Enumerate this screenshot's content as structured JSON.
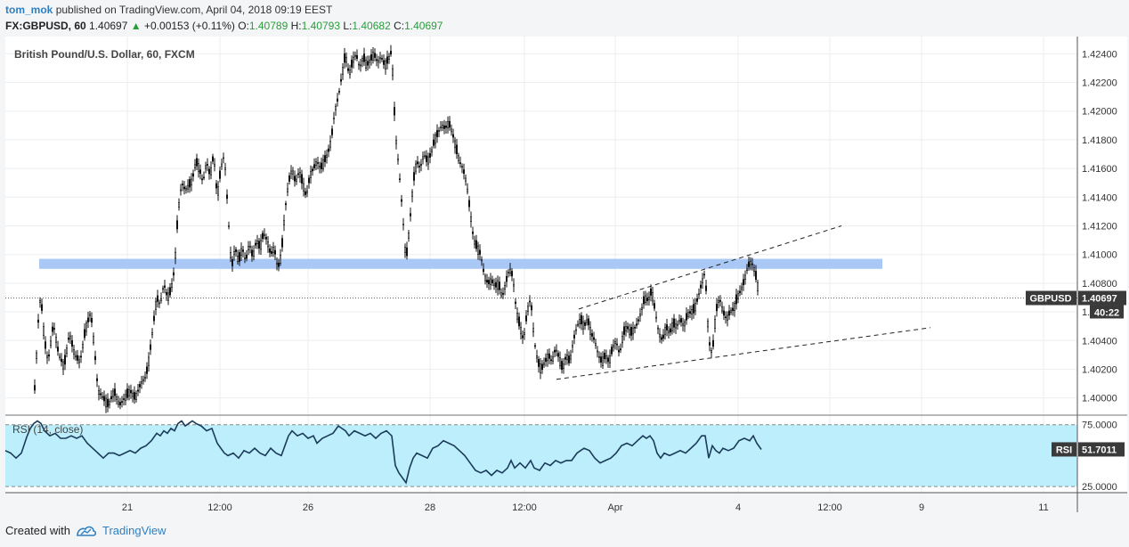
{
  "header": {
    "author": "tom_mok",
    "published_text": "published on TradingView.com, April 04, 2018 09:19 EEST",
    "symbol": "FX:GBPUSD, 60",
    "last": "1.40697",
    "change_arrow": "▲",
    "change": "+0.00153 (+0.11%)",
    "o_label": "O:",
    "o_value": "1.40789",
    "h_label": "H:",
    "h_value": "1.40793",
    "l_label": "L:",
    "l_value": "1.40682",
    "c_label": "C:",
    "c_value": "1.40697"
  },
  "footer": {
    "created_with": "Created with",
    "brand": "TradingView"
  },
  "colors": {
    "candle": "#111111",
    "resistance_zone": "#a9c8f5",
    "rsi_band": "#bdeefb",
    "rsi_line": "#1b3b5a",
    "badge_bg": "#3a3a3a",
    "change_green": "#2a9d3b"
  },
  "chart_data": {
    "type": "candlestick",
    "title": "British Pound/U.S. Dollar, 60, FXCM",
    "ylim": [
      1.3988,
      1.4252
    ],
    "y_ticks": [
      "1.42400",
      "1.42200",
      "1.42000",
      "1.41800",
      "1.41600",
      "1.41400",
      "1.41200",
      "1.41000",
      "1.40800",
      "1.40600",
      "1.40400",
      "1.40200",
      "1.40000"
    ],
    "x_ticks": [
      "21",
      "12:00",
      "26",
      "28",
      "12:00",
      "Apr",
      "4",
      "12:00",
      "9",
      "11"
    ],
    "current_price": 1.40697,
    "price_badge": {
      "label": "GBPUSD",
      "value": "1.40697",
      "countdown": "40:22"
    },
    "resistance_zone": {
      "low": 1.409,
      "high": 1.4097
    },
    "channel": {
      "upper": {
        "x": [
          650,
          945
        ],
        "y": [
          1.4062,
          1.412
        ]
      },
      "lower": {
        "x": [
          625,
          1045
        ],
        "y": [
          1.4013,
          1.4049
        ]
      }
    },
    "price_path": [
      [
        38,
        1.3995
      ],
      [
        44,
        1.4065
      ],
      [
        46,
        1.407
      ],
      [
        50,
        1.404
      ],
      [
        54,
        1.4025
      ],
      [
        60,
        1.4052
      ],
      [
        66,
        1.403
      ],
      [
        72,
        1.4022
      ],
      [
        78,
        1.4045
      ],
      [
        84,
        1.403
      ],
      [
        90,
        1.4025
      ],
      [
        96,
        1.4048
      ],
      [
        102,
        1.406
      ],
      [
        106,
        1.4035
      ],
      [
        110,
        1.4005
      ],
      [
        116,
        1.4
      ],
      [
        122,
        1.3995
      ],
      [
        128,
        1.4005
      ],
      [
        134,
        1.3995
      ],
      [
        140,
        1.4
      ],
      [
        146,
        1.4005
      ],
      [
        152,
        1.4
      ],
      [
        158,
        1.401
      ],
      [
        164,
        1.4015
      ],
      [
        168,
        1.403
      ],
      [
        172,
        1.405
      ],
      [
        176,
        1.407
      ],
      [
        180,
        1.4065
      ],
      [
        184,
        1.408
      ],
      [
        188,
        1.407
      ],
      [
        192,
        1.4075
      ],
      [
        196,
        1.409
      ],
      [
        200,
        1.413
      ],
      [
        204,
        1.415
      ],
      [
        208,
        1.4145
      ],
      [
        212,
        1.4148
      ],
      [
        216,
        1.4152
      ],
      [
        220,
        1.4165
      ],
      [
        224,
        1.416
      ],
      [
        228,
        1.415
      ],
      [
        232,
        1.4165
      ],
      [
        236,
        1.4155
      ],
      [
        240,
        1.417
      ],
      [
        244,
        1.414
      ],
      [
        248,
        1.416
      ],
      [
        252,
        1.417
      ],
      [
        256,
        1.413
      ],
      [
        260,
        1.409
      ],
      [
        264,
        1.4105
      ],
      [
        268,
        1.4095
      ],
      [
        272,
        1.4105
      ],
      [
        276,
        1.4095
      ],
      [
        280,
        1.4108
      ],
      [
        284,
        1.4098
      ],
      [
        288,
        1.411
      ],
      [
        292,
        1.4105
      ],
      [
        296,
        1.4115
      ],
      [
        300,
        1.411
      ],
      [
        304,
        1.41
      ],
      [
        308,
        1.4105
      ],
      [
        312,
        1.409
      ],
      [
        316,
        1.41
      ],
      [
        320,
        1.413
      ],
      [
        324,
        1.415
      ],
      [
        328,
        1.416
      ],
      [
        332,
        1.415
      ],
      [
        336,
        1.4158
      ],
      [
        340,
        1.415
      ],
      [
        344,
        1.414
      ],
      [
        348,
        1.4155
      ],
      [
        352,
        1.416
      ],
      [
        356,
        1.4165
      ],
      [
        360,
        1.416
      ],
      [
        364,
        1.4165
      ],
      [
        368,
        1.417
      ],
      [
        372,
        1.418
      ],
      [
        376,
        1.42
      ],
      [
        380,
        1.421
      ],
      [
        384,
        1.4225
      ],
      [
        388,
        1.424
      ],
      [
        392,
        1.4225
      ],
      [
        396,
        1.4235
      ],
      [
        400,
        1.424
      ],
      [
        404,
        1.423
      ],
      [
        408,
        1.4238
      ],
      [
        412,
        1.4232
      ],
      [
        416,
        1.4236
      ],
      [
        420,
        1.424
      ],
      [
        424,
        1.4234
      ],
      [
        428,
        1.4238
      ],
      [
        432,
        1.4232
      ],
      [
        436,
        1.4236
      ],
      [
        440,
        1.4242
      ],
      [
        444,
        1.4185
      ],
      [
        448,
        1.416
      ],
      [
        452,
        1.413
      ],
      [
        456,
        1.4095
      ],
      [
        460,
        1.412
      ],
      [
        464,
        1.415
      ],
      [
        468,
        1.4165
      ],
      [
        472,
        1.416
      ],
      [
        476,
        1.417
      ],
      [
        480,
        1.4165
      ],
      [
        484,
        1.417
      ],
      [
        488,
        1.418
      ],
      [
        492,
        1.4185
      ],
      [
        496,
        1.419
      ],
      [
        500,
        1.4188
      ],
      [
        504,
        1.4192
      ],
      [
        508,
        1.4185
      ],
      [
        512,
        1.4175
      ],
      [
        516,
        1.4165
      ],
      [
        520,
        1.416
      ],
      [
        524,
        1.415
      ],
      [
        528,
        1.413
      ],
      [
        532,
        1.411
      ],
      [
        536,
        1.4105
      ],
      [
        540,
        1.41
      ],
      [
        544,
        1.4085
      ],
      [
        548,
        1.408
      ],
      [
        552,
        1.4082
      ],
      [
        556,
        1.4078
      ],
      [
        560,
        1.408
      ],
      [
        564,
        1.407
      ],
      [
        568,
        1.408
      ],
      [
        572,
        1.409
      ],
      [
        576,
        1.4085
      ],
      [
        580,
        1.406
      ],
      [
        584,
        1.405
      ],
      [
        588,
        1.404
      ],
      [
        592,
        1.406
      ],
      [
        596,
        1.407
      ],
      [
        600,
        1.404
      ],
      [
        604,
        1.4025
      ],
      [
        608,
        1.402
      ],
      [
        612,
        1.4025
      ],
      [
        616,
        1.403
      ],
      [
        620,
        1.4025
      ],
      [
        624,
        1.4035
      ],
      [
        628,
        1.4028
      ],
      [
        632,
        1.402
      ],
      [
        636,
        1.403
      ],
      [
        640,
        1.4025
      ],
      [
        644,
        1.404
      ],
      [
        648,
        1.405
      ],
      [
        652,
        1.4055
      ],
      [
        656,
        1.405
      ],
      [
        660,
        1.4055
      ],
      [
        664,
        1.4045
      ],
      [
        668,
        1.404
      ],
      [
        672,
        1.403
      ],
      [
        676,
        1.4025
      ],
      [
        680,
        1.403
      ],
      [
        684,
        1.4025
      ],
      [
        688,
        1.4035
      ],
      [
        692,
        1.404
      ],
      [
        696,
        1.403
      ],
      [
        700,
        1.4045
      ],
      [
        704,
        1.405
      ],
      [
        708,
        1.4045
      ],
      [
        712,
        1.4048
      ],
      [
        716,
        1.4052
      ],
      [
        720,
        1.406
      ],
      [
        724,
        1.407
      ],
      [
        728,
        1.4068
      ],
      [
        732,
        1.4075
      ],
      [
        736,
        1.406
      ],
      [
        740,
        1.4045
      ],
      [
        744,
        1.404
      ],
      [
        748,
        1.405
      ],
      [
        752,
        1.4045
      ],
      [
        756,
        1.4052
      ],
      [
        760,
        1.405
      ],
      [
        764,
        1.4055
      ],
      [
        768,
        1.405
      ],
      [
        772,
        1.4058
      ],
      [
        776,
        1.406
      ],
      [
        780,
        1.4062
      ],
      [
        784,
        1.407
      ],
      [
        788,
        1.408
      ],
      [
        792,
        1.4088
      ],
      [
        796,
        1.404
      ],
      [
        800,
        1.403
      ],
      [
        804,
        1.406
      ],
      [
        808,
        1.407
      ],
      [
        812,
        1.406
      ],
      [
        816,
        1.4055
      ],
      [
        820,
        1.406
      ],
      [
        824,
        1.4062
      ],
      [
        828,
        1.407
      ],
      [
        832,
        1.4075
      ],
      [
        836,
        1.4082
      ],
      [
        840,
        1.4092
      ],
      [
        844,
        1.4095
      ],
      [
        848,
        1.4088
      ],
      [
        852,
        1.4075
      ]
    ],
    "rsi": {
      "label": "RSI (14, close)",
      "value_label": "RSI",
      "value": "51.7011",
      "band": [
        25,
        75
      ],
      "ylim": [
        20,
        82
      ],
      "y_ticks": [
        "75.0000",
        "25.0000"
      ],
      "path": [
        [
          6,
          54
        ],
        [
          12,
          52
        ],
        [
          18,
          48
        ],
        [
          24,
          52
        ],
        [
          30,
          65
        ],
        [
          34,
          72
        ],
        [
          38,
          76
        ],
        [
          42,
          78
        ],
        [
          46,
          76
        ],
        [
          50,
          70
        ],
        [
          56,
          66
        ],
        [
          62,
          68
        ],
        [
          68,
          64
        ],
        [
          74,
          64
        ],
        [
          80,
          66
        ],
        [
          86,
          64
        ],
        [
          92,
          66
        ],
        [
          98,
          60
        ],
        [
          104,
          56
        ],
        [
          110,
          52
        ],
        [
          116,
          48
        ],
        [
          122,
          52
        ],
        [
          128,
          52
        ],
        [
          134,
          50
        ],
        [
          140,
          52
        ],
        [
          146,
          54
        ],
        [
          152,
          52
        ],
        [
          158,
          56
        ],
        [
          164,
          58
        ],
        [
          170,
          62
        ],
        [
          176,
          68
        ],
        [
          180,
          66
        ],
        [
          184,
          70
        ],
        [
          188,
          68
        ],
        [
          192,
          72
        ],
        [
          196,
          70
        ],
        [
          200,
          76
        ],
        [
          204,
          78
        ],
        [
          208,
          74
        ],
        [
          212,
          76
        ],
        [
          216,
          78
        ],
        [
          220,
          76
        ],
        [
          226,
          74
        ],
        [
          232,
          70
        ],
        [
          238,
          72
        ],
        [
          244,
          60
        ],
        [
          248,
          56
        ],
        [
          252,
          52
        ],
        [
          256,
          50
        ],
        [
          262,
          52
        ],
        [
          268,
          48
        ],
        [
          274,
          54
        ],
        [
          280,
          52
        ],
        [
          286,
          56
        ],
        [
          292,
          52
        ],
        [
          298,
          50
        ],
        [
          304,
          56
        ],
        [
          310,
          52
        ],
        [
          316,
          50
        ],
        [
          320,
          58
        ],
        [
          324,
          66
        ],
        [
          328,
          70
        ],
        [
          334,
          66
        ],
        [
          340,
          68
        ],
        [
          346,
          64
        ],
        [
          352,
          66
        ],
        [
          356,
          60
        ],
        [
          362,
          64
        ],
        [
          368,
          66
        ],
        [
          374,
          68
        ],
        [
          380,
          74
        ],
        [
          384,
          72
        ],
        [
          388,
          70
        ],
        [
          392,
          66
        ],
        [
          398,
          70
        ],
        [
          404,
          68
        ],
        [
          410,
          66
        ],
        [
          416,
          68
        ],
        [
          422,
          64
        ],
        [
          428,
          68
        ],
        [
          434,
          70
        ],
        [
          440,
          66
        ],
        [
          444,
          42
        ],
        [
          448,
          36
        ],
        [
          452,
          32
        ],
        [
          456,
          28
        ],
        [
          460,
          40
        ],
        [
          464,
          48
        ],
        [
          468,
          52
        ],
        [
          474,
          50
        ],
        [
          480,
          48
        ],
        [
          486,
          56
        ],
        [
          492,
          58
        ],
        [
          498,
          62
        ],
        [
          504,
          60
        ],
        [
          510,
          58
        ],
        [
          516,
          54
        ],
        [
          522,
          50
        ],
        [
          528,
          44
        ],
        [
          534,
          38
        ],
        [
          540,
          36
        ],
        [
          546,
          38
        ],
        [
          552,
          34
        ],
        [
          558,
          38
        ],
        [
          564,
          36
        ],
        [
          570,
          40
        ],
        [
          574,
          46
        ],
        [
          578,
          40
        ],
        [
          584,
          44
        ],
        [
          590,
          40
        ],
        [
          596,
          46
        ],
        [
          600,
          40
        ],
        [
          606,
          38
        ],
        [
          612,
          44
        ],
        [
          618,
          42
        ],
        [
          624,
          46
        ],
        [
          630,
          44
        ],
        [
          636,
          46
        ],
        [
          642,
          46
        ],
        [
          648,
          52
        ],
        [
          652,
          54
        ],
        [
          656,
          56
        ],
        [
          662,
          54
        ],
        [
          668,
          48
        ],
        [
          674,
          44
        ],
        [
          680,
          46
        ],
        [
          686,
          48
        ],
        [
          692,
          52
        ],
        [
          698,
          58
        ],
        [
          704,
          60
        ],
        [
          710,
          58
        ],
        [
          716,
          62
        ],
        [
          722,
          66
        ],
        [
          726,
          64
        ],
        [
          730,
          66
        ],
        [
          734,
          62
        ],
        [
          738,
          52
        ],
        [
          742,
          48
        ],
        [
          746,
          52
        ],
        [
          752,
          50
        ],
        [
          758,
          52
        ],
        [
          764,
          54
        ],
        [
          770,
          52
        ],
        [
          776,
          56
        ],
        [
          782,
          60
        ],
        [
          788,
          66
        ],
        [
          792,
          66
        ],
        [
          796,
          48
        ],
        [
          800,
          58
        ],
        [
          804,
          54
        ],
        [
          808,
          52
        ],
        [
          812,
          56
        ],
        [
          818,
          54
        ],
        [
          824,
          56
        ],
        [
          830,
          62
        ],
        [
          836,
          64
        ],
        [
          842,
          62
        ],
        [
          846,
          66
        ],
        [
          850,
          60
        ],
        [
          855,
          55
        ]
      ]
    }
  }
}
